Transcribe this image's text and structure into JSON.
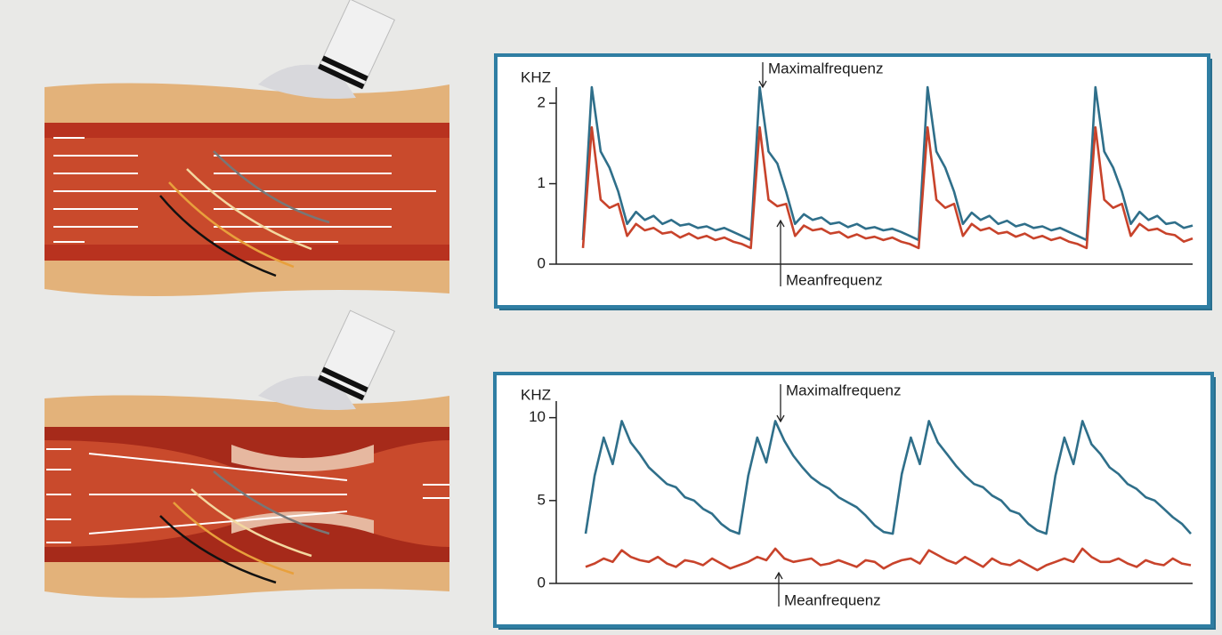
{
  "chart_data": [
    {
      "type": "line",
      "y_label": "KHZ",
      "ylim": [
        0,
        2.2
      ],
      "yticks": [
        0,
        1,
        2
      ],
      "series": [
        {
          "name": "Maximalfrequenz",
          "color": "#2f6f8a",
          "values": [
            0.3,
            2.2,
            1.4,
            1.2,
            0.9,
            0.5,
            0.65,
            0.55,
            0.6,
            0.5,
            0.55,
            0.48,
            0.5,
            0.45,
            0.47,
            0.42,
            0.45,
            0.4,
            0.35,
            0.3,
            2.2,
            1.4,
            1.25,
            0.9,
            0.5,
            0.62,
            0.55,
            0.58,
            0.5,
            0.52,
            0.46,
            0.5,
            0.44,
            0.46,
            0.42,
            0.44,
            0.4,
            0.35,
            0.3,
            2.2,
            1.4,
            1.2,
            0.9,
            0.5,
            0.64,
            0.55,
            0.6,
            0.5,
            0.54,
            0.47,
            0.5,
            0.45,
            0.47,
            0.42,
            0.45,
            0.4,
            0.35,
            0.3,
            2.2,
            1.4,
            1.2,
            0.9,
            0.5,
            0.65,
            0.55,
            0.6,
            0.5,
            0.52,
            0.45,
            0.48
          ]
        },
        {
          "name": "Meanfrequenz",
          "color": "#c8432b",
          "values": [
            0.2,
            1.7,
            0.8,
            0.7,
            0.75,
            0.35,
            0.5,
            0.42,
            0.45,
            0.38,
            0.4,
            0.33,
            0.38,
            0.32,
            0.35,
            0.3,
            0.33,
            0.28,
            0.25,
            0.2,
            1.7,
            0.8,
            0.72,
            0.75,
            0.35,
            0.48,
            0.42,
            0.44,
            0.38,
            0.4,
            0.33,
            0.37,
            0.32,
            0.34,
            0.3,
            0.33,
            0.28,
            0.25,
            0.2,
            1.7,
            0.8,
            0.7,
            0.75,
            0.35,
            0.5,
            0.42,
            0.45,
            0.38,
            0.4,
            0.34,
            0.38,
            0.32,
            0.35,
            0.3,
            0.33,
            0.28,
            0.25,
            0.2,
            1.7,
            0.8,
            0.7,
            0.75,
            0.35,
            0.5,
            0.42,
            0.44,
            0.38,
            0.36,
            0.28,
            0.32
          ]
        }
      ]
    },
    {
      "type": "line",
      "y_label": "KHZ",
      "ylim": [
        0,
        11
      ],
      "yticks": [
        0,
        5,
        10
      ],
      "series": [
        {
          "name": "Maximalfrequenz",
          "color": "#2f6f8a",
          "values": [
            3.0,
            6.5,
            8.8,
            7.2,
            9.8,
            8.5,
            7.8,
            7.0,
            6.5,
            6.0,
            5.8,
            5.2,
            5.0,
            4.5,
            4.2,
            3.6,
            3.2,
            3.0,
            6.5,
            8.8,
            7.3,
            9.8,
            8.6,
            7.7,
            7.0,
            6.4,
            6.0,
            5.7,
            5.2,
            4.9,
            4.6,
            4.1,
            3.5,
            3.1,
            3.0,
            6.6,
            8.8,
            7.2,
            9.8,
            8.5,
            7.8,
            7.1,
            6.5,
            6.0,
            5.8,
            5.3,
            5.0,
            4.4,
            4.2,
            3.6,
            3.2,
            3.0,
            6.5,
            8.8,
            7.2,
            9.8,
            8.4,
            7.8,
            7.0,
            6.6,
            6.0,
            5.7,
            5.2,
            5.0,
            4.5,
            4.0,
            3.6,
            3.0
          ]
        },
        {
          "name": "Meanfrequenz",
          "color": "#c8432b",
          "values": [
            1.0,
            1.2,
            1.5,
            1.3,
            2.0,
            1.6,
            1.4,
            1.3,
            1.6,
            1.2,
            1.0,
            1.4,
            1.3,
            1.1,
            1.5,
            1.2,
            0.9,
            1.1,
            1.3,
            1.6,
            1.4,
            2.1,
            1.5,
            1.3,
            1.4,
            1.5,
            1.1,
            1.2,
            1.4,
            1.2,
            1.0,
            1.4,
            1.3,
            0.9,
            1.2,
            1.4,
            1.5,
            1.2,
            2.0,
            1.7,
            1.4,
            1.2,
            1.6,
            1.3,
            1.0,
            1.5,
            1.2,
            1.1,
            1.4,
            1.1,
            0.8,
            1.1,
            1.3,
            1.5,
            1.3,
            2.1,
            1.6,
            1.3,
            1.3,
            1.5,
            1.2,
            1.0,
            1.4,
            1.2,
            1.1,
            1.5,
            1.2,
            1.1
          ]
        }
      ]
    }
  ]
}
